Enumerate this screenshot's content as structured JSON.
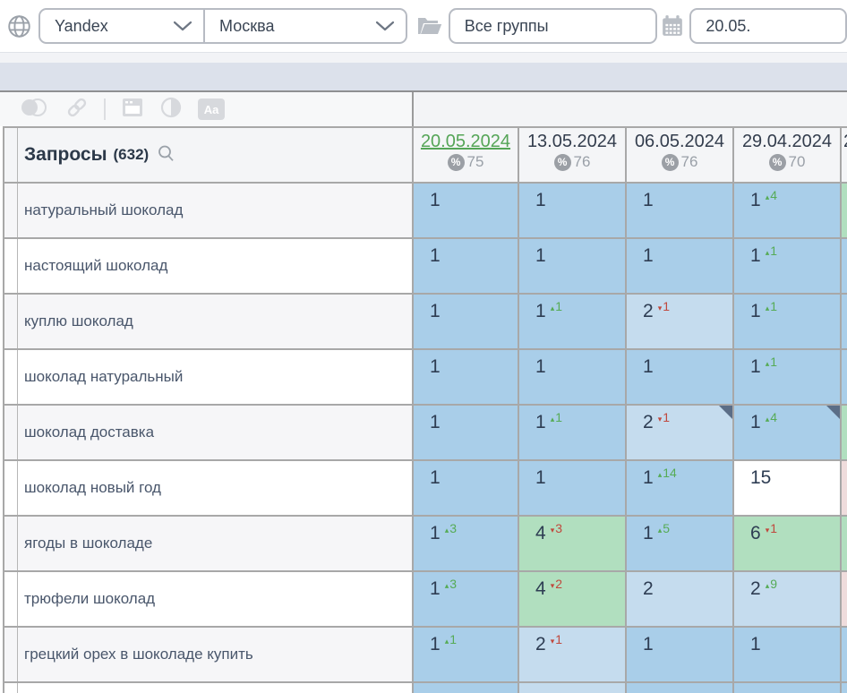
{
  "topbar": {
    "search_engine": "Yandex",
    "region": "Москва",
    "group_filter": "Все группы",
    "date_value": "20.05.",
    "icons": [
      "globe-icon",
      "folder-icon",
      "calendar-icon"
    ]
  },
  "toolbar": {
    "icons": [
      "overlap-circles-icon",
      "link-icon",
      "separator",
      "window-icon",
      "contrast-icon",
      "font-size-icon"
    ],
    "font_icon_label": "Aa"
  },
  "palette": {
    "blue": "#a9cee9",
    "light_blue": "#c5dcee",
    "green": "#b1dfbf",
    "white": "#ffffff",
    "pink": "#efdcdc",
    "up": "#56ab56",
    "down": "#c0483d",
    "date_active": "#55a557",
    "date_normal": "#333d4d",
    "corner": "#5b6e87"
  },
  "table": {
    "queries_label": "Запросы",
    "queries_count": "(632)",
    "columns": [
      {
        "date": "20.05.2024",
        "visibility": "75",
        "active": true
      },
      {
        "date": "13.05.2024",
        "visibility": "76"
      },
      {
        "date": "06.05.2024",
        "visibility": "76"
      },
      {
        "date": "29.04.2024",
        "visibility": "70"
      },
      {
        "date": "2",
        "visibility": "",
        "partial": true
      }
    ],
    "rows": [
      {
        "keyword": "натуральный шоколад",
        "cells": [
          {
            "v": "1",
            "bg": "blue"
          },
          {
            "v": "1",
            "bg": "blue"
          },
          {
            "v": "1",
            "bg": "blue"
          },
          {
            "v": "1",
            "bg": "blue",
            "delta": {
              "dir": "up",
              "n": "4"
            }
          },
          {
            "bg": "green"
          }
        ]
      },
      {
        "keyword": "настоящий шоколад",
        "cells": [
          {
            "v": "1",
            "bg": "blue"
          },
          {
            "v": "1",
            "bg": "blue"
          },
          {
            "v": "1",
            "bg": "blue"
          },
          {
            "v": "1",
            "bg": "blue",
            "delta": {
              "dir": "up",
              "n": "1"
            }
          },
          {
            "bg": "blue"
          }
        ]
      },
      {
        "keyword": "куплю шоколад",
        "cells": [
          {
            "v": "1",
            "bg": "blue"
          },
          {
            "v": "1",
            "bg": "blue",
            "delta": {
              "dir": "up",
              "n": "1"
            }
          },
          {
            "v": "2",
            "bg": "light_blue",
            "delta": {
              "dir": "down",
              "n": "1"
            }
          },
          {
            "v": "1",
            "bg": "blue",
            "delta": {
              "dir": "up",
              "n": "1"
            }
          },
          {
            "bg": "blue"
          }
        ]
      },
      {
        "keyword": "шоколад натуральный",
        "cells": [
          {
            "v": "1",
            "bg": "blue"
          },
          {
            "v": "1",
            "bg": "blue"
          },
          {
            "v": "1",
            "bg": "blue"
          },
          {
            "v": "1",
            "bg": "blue",
            "delta": {
              "dir": "up",
              "n": "1"
            }
          },
          {
            "bg": "blue"
          }
        ]
      },
      {
        "keyword": "шоколад доставка",
        "cells": [
          {
            "v": "1",
            "bg": "blue"
          },
          {
            "v": "1",
            "bg": "blue",
            "delta": {
              "dir": "up",
              "n": "1"
            }
          },
          {
            "v": "2",
            "bg": "light_blue",
            "delta": {
              "dir": "down",
              "n": "1"
            },
            "corner": true
          },
          {
            "v": "1",
            "bg": "blue",
            "delta": {
              "dir": "up",
              "n": "4"
            },
            "corner": true
          },
          {
            "bg": "green"
          }
        ]
      },
      {
        "keyword": "шоколад новый год",
        "cells": [
          {
            "v": "1",
            "bg": "blue"
          },
          {
            "v": "1",
            "bg": "blue"
          },
          {
            "v": "1",
            "bg": "blue",
            "delta": {
              "dir": "up",
              "n": "14"
            }
          },
          {
            "v": "15",
            "bg": "white"
          },
          {
            "bg": "pink"
          }
        ]
      },
      {
        "keyword": "ягоды в шоколаде",
        "cells": [
          {
            "v": "1",
            "bg": "blue",
            "delta": {
              "dir": "up",
              "n": "3"
            }
          },
          {
            "v": "4",
            "bg": "green",
            "delta": {
              "dir": "down",
              "n": "3"
            }
          },
          {
            "v": "1",
            "bg": "blue",
            "delta": {
              "dir": "up",
              "n": "5"
            }
          },
          {
            "v": "6",
            "bg": "green",
            "delta": {
              "dir": "down",
              "n": "1"
            }
          },
          {
            "bg": "green"
          }
        ]
      },
      {
        "keyword": "трюфели шоколад",
        "cells": [
          {
            "v": "1",
            "bg": "blue",
            "delta": {
              "dir": "up",
              "n": "3"
            }
          },
          {
            "v": "4",
            "bg": "green",
            "delta": {
              "dir": "down",
              "n": "2"
            }
          },
          {
            "v": "2",
            "bg": "light_blue"
          },
          {
            "v": "2",
            "bg": "light_blue",
            "delta": {
              "dir": "up",
              "n": "9"
            }
          },
          {
            "bg": "pink"
          }
        ]
      },
      {
        "keyword": "грецкий орех в шоколаде купить",
        "cells": [
          {
            "v": "1",
            "bg": "blue",
            "delta": {
              "dir": "up",
              "n": "1"
            }
          },
          {
            "v": "2",
            "bg": "light_blue",
            "delta": {
              "dir": "down",
              "n": "1"
            }
          },
          {
            "v": "1",
            "bg": "blue"
          },
          {
            "v": "1",
            "bg": "blue"
          },
          {
            "bg": "blue"
          }
        ]
      },
      {
        "keyword": "",
        "partial": true,
        "cells": [
          {
            "bg": "blue"
          },
          {
            "bg": "light_blue"
          },
          {
            "bg": "blue"
          },
          {
            "bg": "blue"
          },
          {
            "bg": "blue"
          }
        ]
      }
    ]
  }
}
